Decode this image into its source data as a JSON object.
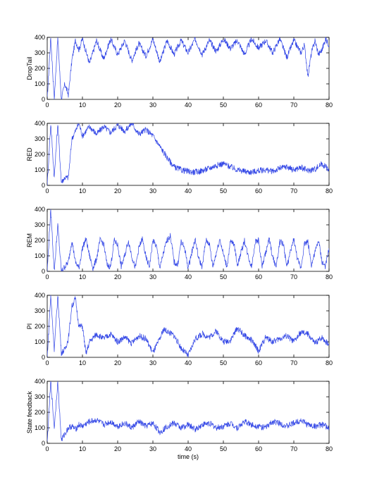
{
  "chart_data": [
    {
      "type": "line",
      "ylabel": "DropTail",
      "xlim": [
        0,
        80
      ],
      "ylim": [
        0,
        400
      ],
      "xticks": [
        "0",
        "10",
        "20",
        "30",
        "40",
        "50",
        "60",
        "70",
        "80"
      ],
      "yticks": [
        "0",
        "100",
        "200",
        "300",
        "400"
      ],
      "x": [
        0,
        1,
        2,
        3,
        4,
        5,
        6,
        7,
        8,
        9,
        10,
        12,
        14,
        16,
        18,
        20,
        22,
        24,
        26,
        28,
        30,
        32,
        34,
        36,
        38,
        40,
        42,
        44,
        46,
        48,
        50,
        52,
        54,
        56,
        58,
        60,
        62,
        64,
        66,
        68,
        70,
        72,
        73,
        74,
        75,
        76,
        77,
        78,
        79,
        80
      ],
      "values": [
        0,
        400,
        0,
        400,
        0,
        100,
        30,
        250,
        380,
        320,
        390,
        230,
        380,
        260,
        390,
        290,
        380,
        250,
        360,
        280,
        390,
        240,
        380,
        290,
        380,
        300,
        390,
        290,
        380,
        310,
        390,
        330,
        380,
        290,
        390,
        330,
        380,
        300,
        390,
        270,
        380,
        300,
        350,
        150,
        300,
        380,
        290,
        320,
        390,
        350
      ]
    },
    {
      "type": "line",
      "ylabel": "RED",
      "xlim": [
        0,
        80
      ],
      "ylim": [
        0,
        400
      ],
      "xticks": [
        "0",
        "10",
        "20",
        "30",
        "40",
        "50",
        "60",
        "70",
        "80"
      ],
      "yticks": [
        "0",
        "100",
        "200",
        "300",
        "400"
      ],
      "x": [
        0,
        1,
        2,
        3,
        4,
        5,
        6,
        7,
        8,
        9,
        10,
        12,
        14,
        16,
        18,
        20,
        22,
        24,
        26,
        28,
        30,
        32,
        34,
        36,
        38,
        40,
        42,
        44,
        46,
        48,
        50,
        52,
        54,
        56,
        58,
        60,
        62,
        64,
        66,
        68,
        70,
        72,
        74,
        76,
        78,
        80
      ],
      "values": [
        0,
        400,
        50,
        400,
        20,
        50,
        50,
        300,
        350,
        400,
        320,
        380,
        330,
        380,
        340,
        390,
        350,
        400,
        330,
        360,
        320,
        250,
        180,
        120,
        100,
        90,
        85,
        95,
        110,
        130,
        140,
        120,
        100,
        90,
        85,
        95,
        100,
        90,
        110,
        120,
        100,
        115,
        95,
        105,
        140,
        100
      ]
    },
    {
      "type": "line",
      "ylabel": "REM",
      "xlim": [
        0,
        80
      ],
      "ylim": [
        0,
        400
      ],
      "xticks": [
        "0",
        "10",
        "20",
        "30",
        "40",
        "50",
        "60",
        "70",
        "80"
      ],
      "yticks": [
        "0",
        "100",
        "200",
        "300",
        "400"
      ],
      "x": [
        0,
        1,
        2,
        3,
        4,
        5,
        6,
        7,
        8,
        9,
        10,
        11,
        12,
        13,
        14,
        15,
        16,
        17,
        18,
        19,
        20,
        21,
        22,
        23,
        24,
        25,
        26,
        27,
        28,
        29,
        30,
        31,
        32,
        33,
        34,
        35,
        36,
        37,
        38,
        39,
        40,
        41,
        42,
        43,
        44,
        45,
        46,
        47,
        48,
        49,
        50,
        51,
        52,
        53,
        54,
        55,
        56,
        57,
        58,
        59,
        60,
        61,
        62,
        63,
        64,
        65,
        66,
        67,
        68,
        69,
        70,
        71,
        72,
        73,
        74,
        75,
        76,
        77,
        78,
        79,
        80
      ],
      "values": [
        0,
        400,
        0,
        300,
        0,
        30,
        60,
        200,
        60,
        20,
        150,
        210,
        100,
        20,
        80,
        200,
        180,
        40,
        30,
        200,
        170,
        30,
        100,
        200,
        100,
        20,
        150,
        210,
        90,
        30,
        200,
        160,
        20,
        120,
        200,
        230,
        60,
        40,
        190,
        150,
        20,
        120,
        210,
        80,
        30,
        200,
        180,
        30,
        120,
        210,
        110,
        30,
        190,
        180,
        40,
        120,
        200,
        100,
        30,
        190,
        200,
        30,
        120,
        210,
        90,
        30,
        190,
        180,
        30,
        120,
        210,
        80,
        20,
        180,
        190,
        40,
        120,
        200,
        60,
        30,
        150
      ]
    },
    {
      "type": "line",
      "ylabel": "PI",
      "xlim": [
        0,
        80
      ],
      "ylim": [
        0,
        400
      ],
      "xticks": [
        "0",
        "10",
        "20",
        "30",
        "40",
        "50",
        "60",
        "70",
        "80"
      ],
      "yticks": [
        "0",
        "100",
        "200",
        "300",
        "400"
      ],
      "x": [
        0,
        1,
        2,
        3,
        4,
        5,
        6,
        7,
        8,
        9,
        10,
        11,
        12,
        14,
        16,
        18,
        20,
        22,
        24,
        26,
        28,
        30,
        32,
        33,
        34,
        36,
        38,
        40,
        42,
        44,
        46,
        48,
        50,
        52,
        54,
        56,
        58,
        60,
        62,
        64,
        66,
        68,
        70,
        72,
        74,
        76,
        78,
        80
      ],
      "values": [
        0,
        400,
        50,
        400,
        30,
        50,
        120,
        330,
        380,
        200,
        200,
        20,
        100,
        150,
        120,
        150,
        100,
        130,
        90,
        140,
        120,
        30,
        120,
        180,
        170,
        140,
        60,
        10,
        120,
        150,
        130,
        170,
        100,
        110,
        190,
        140,
        110,
        40,
        130,
        100,
        120,
        140,
        100,
        160,
        150,
        90,
        130,
        80
      ]
    },
    {
      "type": "line",
      "ylabel": "State feedback",
      "xlabel": "time (s)",
      "xlim": [
        0,
        80
      ],
      "ylim": [
        0,
        400
      ],
      "xticks": [
        "0",
        "10",
        "20",
        "30",
        "40",
        "50",
        "60",
        "70",
        "80"
      ],
      "yticks": [
        "0",
        "100",
        "200",
        "300",
        "400"
      ],
      "x": [
        0,
        1,
        2,
        3,
        4,
        5,
        6,
        7,
        8,
        9,
        10,
        12,
        14,
        16,
        18,
        20,
        22,
        24,
        26,
        28,
        30,
        32,
        34,
        36,
        38,
        40,
        42,
        44,
        46,
        48,
        50,
        52,
        54,
        56,
        58,
        60,
        62,
        64,
        66,
        68,
        70,
        72,
        74,
        76,
        78,
        80
      ],
      "values": [
        0,
        400,
        100,
        400,
        20,
        60,
        100,
        110,
        90,
        120,
        110,
        140,
        150,
        120,
        140,
        110,
        130,
        100,
        140,
        110,
        130,
        70,
        110,
        130,
        100,
        120,
        90,
        120,
        130,
        100,
        110,
        130,
        100,
        140,
        120,
        110,
        100,
        140,
        130,
        110,
        130,
        150,
        120,
        110,
        120,
        100
      ]
    }
  ],
  "style": {
    "line_color": "#3347e6",
    "axis_color": "#000000"
  }
}
